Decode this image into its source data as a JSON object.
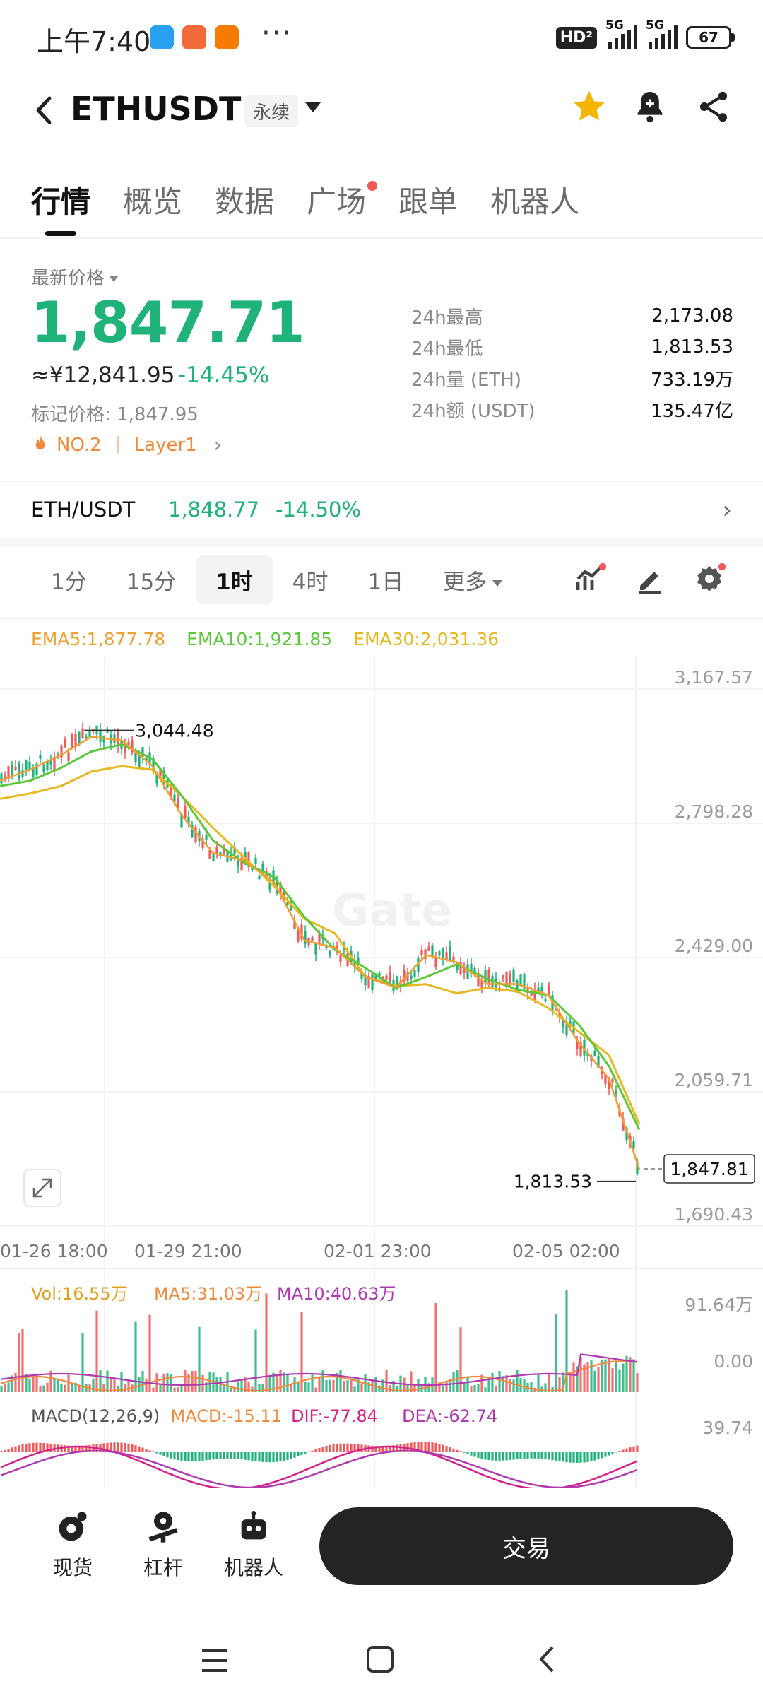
{
  "status_bar": {
    "time": "上午7:40",
    "network_1": "5G",
    "network_2": "5G",
    "battery": "67",
    "hd_label": "HD"
  },
  "header": {
    "pair": "ETHUSDT",
    "contract_type": "永续"
  },
  "tabs": [
    {
      "label": "行情",
      "active": true
    },
    {
      "label": "概览"
    },
    {
      "label": "数据"
    },
    {
      "label": "广场",
      "dot": true
    },
    {
      "label": "跟单"
    },
    {
      "label": "机器人"
    }
  ],
  "price": {
    "latest_label": "最新价格",
    "latest": "1,847.71",
    "cny": "≈¥12,841.95",
    "change_pct": "-14.45%",
    "mark_label": "标记价格:",
    "mark_value": "1,847.95",
    "rank": "NO.2",
    "sector": "Layer1"
  },
  "stats": [
    {
      "label": "24h最高",
      "value": "2,173.08"
    },
    {
      "label": "24h最低",
      "value": "1,813.53"
    },
    {
      "label": "24h量 (ETH)",
      "value": "733.19万"
    },
    {
      "label": "24h额 (USDT)",
      "value": "135.47亿"
    }
  ],
  "spot": {
    "pair": "ETH/USDT",
    "price": "1,848.77",
    "change": "-14.50%"
  },
  "intervals": [
    {
      "label": "1分"
    },
    {
      "label": "15分"
    },
    {
      "label": "1时",
      "active": true
    },
    {
      "label": "4时"
    },
    {
      "label": "1日"
    },
    {
      "label": "更多",
      "more": true
    }
  ],
  "chart_data": {
    "type": "line",
    "ema_legend": [
      {
        "label": "EMA5:1,877.78",
        "color": "#f0a030"
      },
      {
        "label": "EMA10:1,921.85",
        "color": "#5dc93a"
      },
      {
        "label": "EMA30:2,031.36",
        "color": "#e8b820"
      }
    ],
    "y_ticks": [
      "3,167.57",
      "2,798.28",
      "2,429.00",
      "2,059.71",
      "1,690.43"
    ],
    "x_ticks": [
      "01-26 18:00",
      "01-29 21:00",
      "02-01 23:00",
      "02-05 02:00"
    ],
    "high_label": "3,044.48",
    "low_label": "1,813.53",
    "current_label": "1,847.81",
    "watermark": "Gate",
    "price_series_x_index": [
      0,
      10,
      20,
      30,
      40,
      50,
      60,
      70,
      80,
      90,
      100,
      110,
      120,
      130,
      140,
      150,
      160,
      170,
      180,
      190,
      200,
      210
    ],
    "price_series": [
      2920,
      2950,
      2990,
      3040,
      3030,
      2960,
      2820,
      2720,
      2700,
      2640,
      2480,
      2460,
      2380,
      2350,
      2440,
      2420,
      2360,
      2360,
      2330,
      2200,
      2100,
      1850
    ],
    "volume_legend": [
      {
        "label": "Vol:16.55万",
        "color": "#e0a020"
      },
      {
        "label": "MA5:31.03万",
        "color": "#f08a3c"
      },
      {
        "label": "MA10:40.63万",
        "color": "#b03ab0"
      }
    ],
    "volume_ticks": [
      "91.64万",
      "0.00"
    ],
    "macd_legend": [
      {
        "label": "MACD(12,26,9)",
        "color": "#555555"
      },
      {
        "label": "MACD:-15.11",
        "color": "#f08a3c"
      },
      {
        "label": "DIF:-77.84",
        "color": "#d6208a"
      },
      {
        "label": "DEA:-62.74",
        "color": "#b03ab0"
      }
    ],
    "macd_tick": "39.74"
  },
  "bottom_bar": {
    "items": [
      {
        "label": "现货",
        "icon": "spot-icon"
      },
      {
        "label": "杠杆",
        "icon": "margin-icon"
      },
      {
        "label": "机器人",
        "icon": "robot-icon"
      }
    ],
    "trade_label": "交易"
  },
  "colors": {
    "up": "#f0585a",
    "down": "#1fb37b",
    "accent": "#1fb37b"
  }
}
